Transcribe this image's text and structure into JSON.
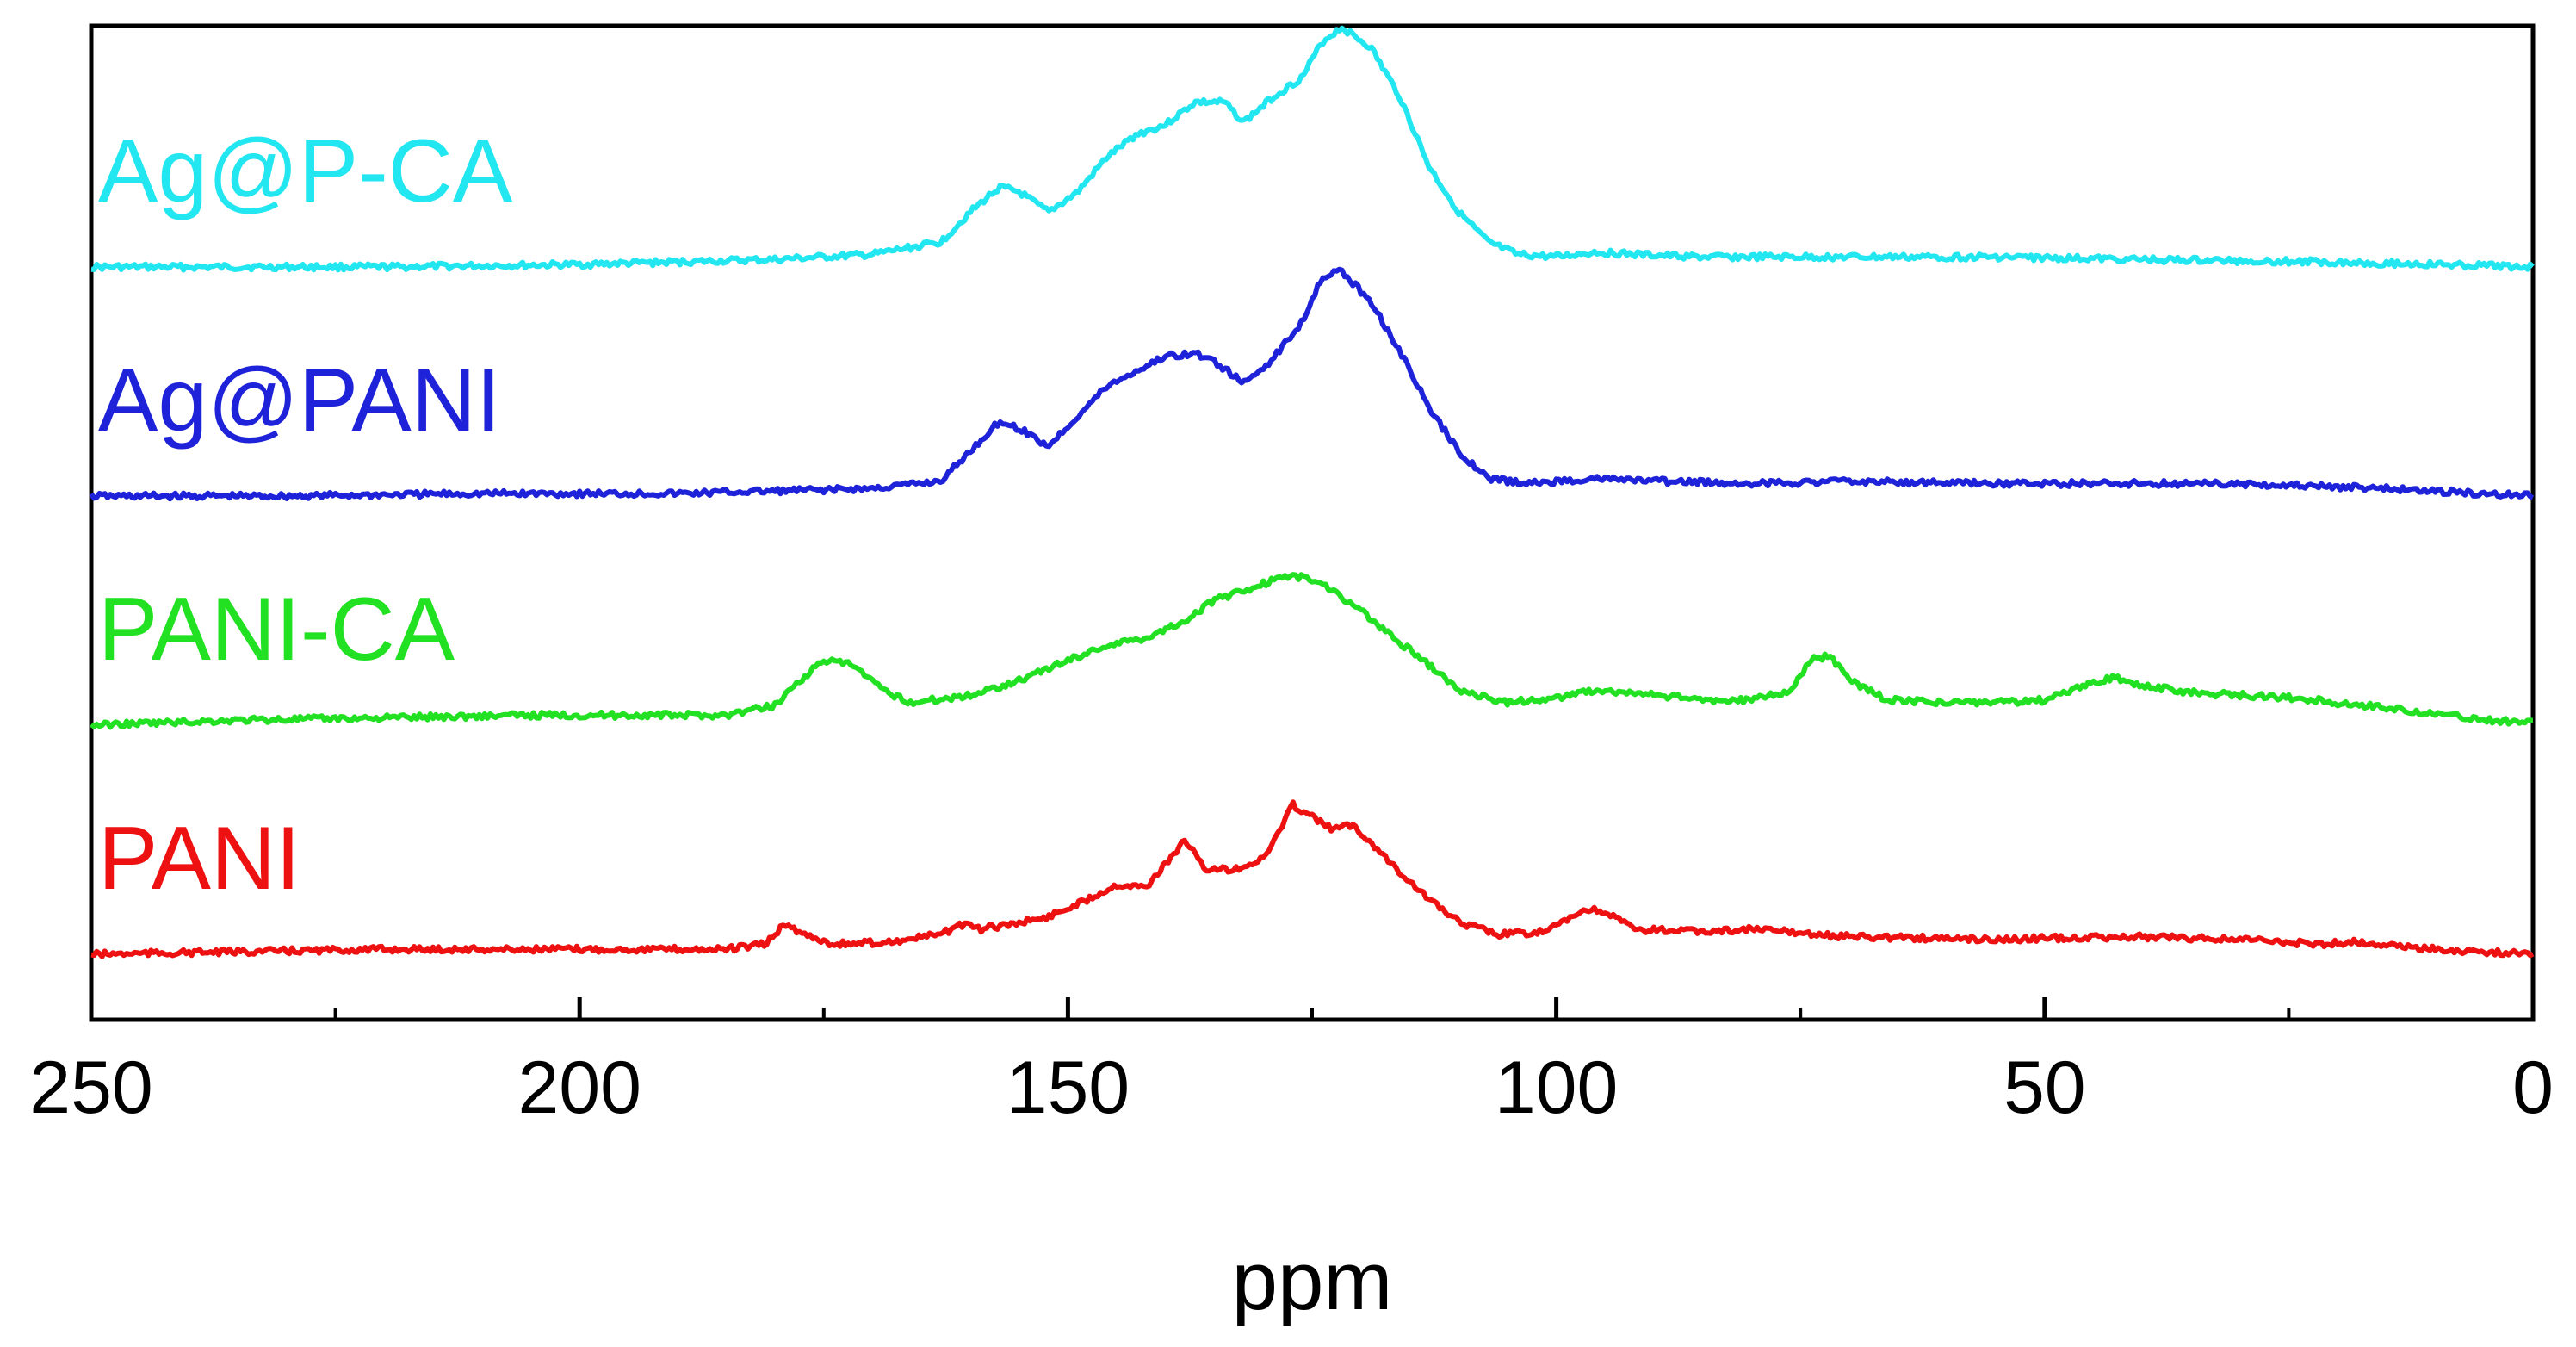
{
  "chart_data": {
    "type": "line",
    "title": "",
    "xlabel": "ppm",
    "ylabel": "",
    "xlim": [
      250,
      0
    ],
    "x_reversed": true,
    "y_ticks_shown": false,
    "grid": false,
    "legend": "inline labels at left of each trace",
    "xticks": [
      250,
      200,
      150,
      100,
      50,
      0
    ],
    "series": [
      {
        "name": "Ag@P-CA",
        "color": "#22e6f0",
        "offset": 3,
        "points": [
          [
            250,
            0.0
          ],
          [
            220,
            0.0
          ],
          [
            200,
            0.01
          ],
          [
            190,
            0.02
          ],
          [
            180,
            0.03
          ],
          [
            170,
            0.05
          ],
          [
            163,
            0.1
          ],
          [
            160,
            0.22
          ],
          [
            157,
            0.32
          ],
          [
            155,
            0.3
          ],
          [
            152,
            0.22
          ],
          [
            149,
            0.3
          ],
          [
            146,
            0.44
          ],
          [
            143,
            0.53
          ],
          [
            140,
            0.57
          ],
          [
            137,
            0.66
          ],
          [
            134,
            0.66
          ],
          [
            132,
            0.58
          ],
          [
            129,
            0.68
          ],
          [
            126,
            0.76
          ],
          [
            124,
            0.9
          ],
          [
            122,
            0.96
          ],
          [
            119,
            0.88
          ],
          [
            116,
            0.68
          ],
          [
            113,
            0.4
          ],
          [
            110,
            0.22
          ],
          [
            107,
            0.1
          ],
          [
            104,
            0.05
          ],
          [
            100,
            0.04
          ],
          [
            96,
            0.06
          ],
          [
            92,
            0.05
          ],
          [
            85,
            0.04
          ],
          [
            70,
            0.04
          ],
          [
            55,
            0.04
          ],
          [
            40,
            0.03
          ],
          [
            20,
            0.02
          ],
          [
            10,
            0.01
          ],
          [
            0,
            0.0
          ]
        ]
      },
      {
        "name": "Ag@PANI",
        "color": "#1e22d8",
        "offset": 2,
        "points": [
          [
            250,
            0.0
          ],
          [
            230,
            0.0
          ],
          [
            210,
            0.01
          ],
          [
            200,
            0.01
          ],
          [
            190,
            0.01
          ],
          [
            180,
            0.02
          ],
          [
            170,
            0.03
          ],
          [
            163,
            0.06
          ],
          [
            160,
            0.18
          ],
          [
            157,
            0.3
          ],
          [
            155,
            0.27
          ],
          [
            152,
            0.2
          ],
          [
            149,
            0.32
          ],
          [
            146,
            0.44
          ],
          [
            143,
            0.5
          ],
          [
            140,
            0.56
          ],
          [
            137,
            0.57
          ],
          [
            135,
            0.54
          ],
          [
            132,
            0.45
          ],
          [
            129,
            0.55
          ],
          [
            126,
            0.7
          ],
          [
            124,
            0.88
          ],
          [
            122,
            0.9
          ],
          [
            119,
            0.78
          ],
          [
            116,
            0.58
          ],
          [
            113,
            0.35
          ],
          [
            110,
            0.18
          ],
          [
            107,
            0.07
          ],
          [
            103,
            0.05
          ],
          [
            96,
            0.07
          ],
          [
            90,
            0.06
          ],
          [
            80,
            0.05
          ],
          [
            70,
            0.06
          ],
          [
            55,
            0.05
          ],
          [
            45,
            0.05
          ],
          [
            30,
            0.05
          ],
          [
            15,
            0.03
          ],
          [
            5,
            0.01
          ],
          [
            0,
            0.0
          ]
        ]
      },
      {
        "name": "PANI-CA",
        "color": "#22e022",
        "offset": 1,
        "points": [
          [
            250,
            0.0
          ],
          [
            235,
            0.02
          ],
          [
            220,
            0.03
          ],
          [
            205,
            0.04
          ],
          [
            190,
            0.04
          ],
          [
            185,
            0.04
          ],
          [
            180,
            0.08
          ],
          [
            178,
            0.16
          ],
          [
            175,
            0.26
          ],
          [
            172,
            0.24
          ],
          [
            169,
            0.14
          ],
          [
            166,
            0.09
          ],
          [
            160,
            0.12
          ],
          [
            155,
            0.18
          ],
          [
            150,
            0.26
          ],
          [
            146,
            0.32
          ],
          [
            142,
            0.35
          ],
          [
            138,
            0.42
          ],
          [
            135,
            0.5
          ],
          [
            132,
            0.54
          ],
          [
            129,
            0.58
          ],
          [
            127,
            0.6
          ],
          [
            124,
            0.57
          ],
          [
            120,
            0.46
          ],
          [
            117,
            0.36
          ],
          [
            113,
            0.24
          ],
          [
            110,
            0.14
          ],
          [
            105,
            0.09
          ],
          [
            100,
            0.11
          ],
          [
            96,
            0.14
          ],
          [
            90,
            0.12
          ],
          [
            85,
            0.1
          ],
          [
            80,
            0.1
          ],
          [
            76,
            0.14
          ],
          [
            74,
            0.26
          ],
          [
            72,
            0.28
          ],
          [
            70,
            0.18
          ],
          [
            66,
            0.1
          ],
          [
            60,
            0.09
          ],
          [
            55,
            0.09
          ],
          [
            50,
            0.1
          ],
          [
            46,
            0.16
          ],
          [
            43,
            0.19
          ],
          [
            40,
            0.16
          ],
          [
            35,
            0.13
          ],
          [
            25,
            0.11
          ],
          [
            15,
            0.07
          ],
          [
            5,
            0.02
          ],
          [
            0,
            0.01
          ]
        ]
      },
      {
        "name": "PANI",
        "color": "#ee1111",
        "offset": 0,
        "points": [
          [
            250,
            0.0
          ],
          [
            235,
            0.01
          ],
          [
            220,
            0.02
          ],
          [
            200,
            0.02
          ],
          [
            185,
            0.02
          ],
          [
            181,
            0.04
          ],
          [
            179,
            0.12
          ],
          [
            177,
            0.08
          ],
          [
            174,
            0.04
          ],
          [
            168,
            0.05
          ],
          [
            163,
            0.08
          ],
          [
            161,
            0.12
          ],
          [
            159,
            0.1
          ],
          [
            156,
            0.12
          ],
          [
            152,
            0.15
          ],
          [
            148,
            0.22
          ],
          [
            145,
            0.28
          ],
          [
            142,
            0.27
          ],
          [
            140,
            0.36
          ],
          [
            138,
            0.46
          ],
          [
            136,
            0.34
          ],
          [
            133,
            0.34
          ],
          [
            130,
            0.38
          ],
          [
            128,
            0.52
          ],
          [
            127,
            0.6
          ],
          [
            125,
            0.55
          ],
          [
            123,
            0.5
          ],
          [
            121,
            0.52
          ],
          [
            119,
            0.45
          ],
          [
            116,
            0.33
          ],
          [
            113,
            0.22
          ],
          [
            110,
            0.13
          ],
          [
            106,
            0.08
          ],
          [
            101,
            0.09
          ],
          [
            97,
            0.18
          ],
          [
            95,
            0.17
          ],
          [
            92,
            0.1
          ],
          [
            85,
            0.09
          ],
          [
            80,
            0.1
          ],
          [
            70,
            0.07
          ],
          [
            55,
            0.06
          ],
          [
            40,
            0.07
          ],
          [
            30,
            0.06
          ],
          [
            22,
            0.04
          ],
          [
            18,
            0.05
          ],
          [
            10,
            0.02
          ],
          [
            0,
            0.0
          ]
        ]
      }
    ]
  }
}
